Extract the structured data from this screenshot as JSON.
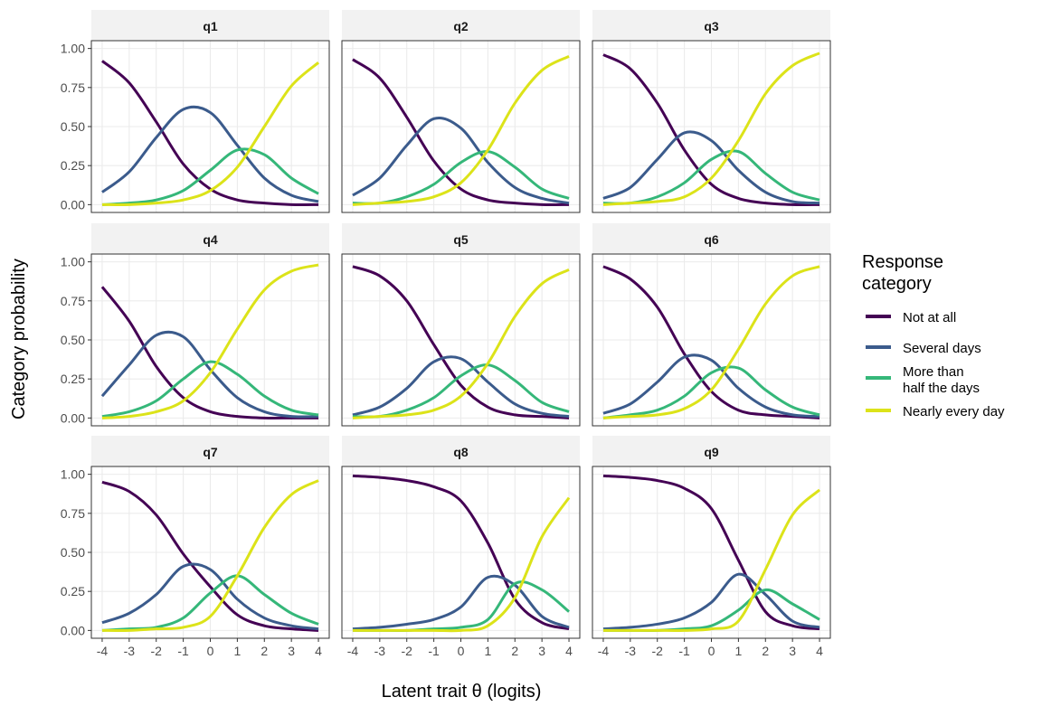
{
  "chart_data": {
    "type": "line",
    "x_label": "Latent trait θ (logits)",
    "y_label": "Category probability",
    "legend_title": "Response\ncategory",
    "legend": [
      {
        "name": "Not at all",
        "color": "#440154"
      },
      {
        "name": "Several days",
        "color": "#3b5b8c"
      },
      {
        "name": "More than\nhalf the days",
        "color": "#35b779"
      },
      {
        "name": "Nearly every day",
        "color": "#dce319"
      }
    ],
    "x": [
      -4,
      -3,
      -2,
      -1,
      0,
      1,
      2,
      3,
      4
    ],
    "xlim": [
      -4.4,
      4.4
    ],
    "xticks": [
      -4,
      -3,
      -2,
      -1,
      0,
      1,
      2,
      3,
      4
    ],
    "ylim": [
      -0.05,
      1.05
    ],
    "yticks": [
      {
        "value": 0,
        "label": "0.00"
      },
      {
        "value": 0.25,
        "label": "0.25"
      },
      {
        "value": 0.5,
        "label": "0.50"
      },
      {
        "value": 0.75,
        "label": "0.75"
      },
      {
        "value": 1,
        "label": "1.00"
      }
    ],
    "grid": true,
    "panels": [
      {
        "title": "q1",
        "series": [
          [
            0.92,
            0.78,
            0.53,
            0.26,
            0.1,
            0.03,
            0.01,
            0.0,
            0.0
          ],
          [
            0.08,
            0.21,
            0.43,
            0.61,
            0.59,
            0.38,
            0.17,
            0.06,
            0.02
          ],
          [
            0.0,
            0.01,
            0.03,
            0.09,
            0.22,
            0.35,
            0.32,
            0.17,
            0.07
          ],
          [
            0.0,
            0.0,
            0.01,
            0.03,
            0.09,
            0.24,
            0.5,
            0.76,
            0.91
          ]
        ]
      },
      {
        "title": "q2",
        "series": [
          [
            0.93,
            0.81,
            0.56,
            0.28,
            0.1,
            0.03,
            0.01,
            0.0,
            0.0
          ],
          [
            0.06,
            0.17,
            0.38,
            0.55,
            0.49,
            0.27,
            0.11,
            0.04,
            0.01
          ],
          [
            0.01,
            0.01,
            0.05,
            0.13,
            0.27,
            0.34,
            0.24,
            0.1,
            0.04
          ],
          [
            0.0,
            0.01,
            0.02,
            0.05,
            0.14,
            0.35,
            0.65,
            0.86,
            0.95
          ]
        ]
      },
      {
        "title": "q3",
        "series": [
          [
            0.96,
            0.87,
            0.65,
            0.35,
            0.13,
            0.04,
            0.01,
            0.0,
            0.0
          ],
          [
            0.04,
            0.11,
            0.29,
            0.46,
            0.41,
            0.22,
            0.08,
            0.02,
            0.01
          ],
          [
            0.01,
            0.01,
            0.05,
            0.14,
            0.29,
            0.34,
            0.2,
            0.08,
            0.03
          ],
          [
            0.0,
            0.01,
            0.02,
            0.05,
            0.17,
            0.41,
            0.71,
            0.89,
            0.97
          ]
        ]
      },
      {
        "title": "q4",
        "series": [
          [
            0.84,
            0.62,
            0.33,
            0.13,
            0.04,
            0.01,
            0.0,
            0.0,
            0.0
          ],
          [
            0.14,
            0.34,
            0.53,
            0.52,
            0.31,
            0.13,
            0.04,
            0.01,
            0.01
          ],
          [
            0.01,
            0.04,
            0.11,
            0.25,
            0.36,
            0.28,
            0.14,
            0.05,
            0.02
          ],
          [
            0.0,
            0.01,
            0.04,
            0.11,
            0.29,
            0.57,
            0.82,
            0.94,
            0.98
          ]
        ]
      },
      {
        "title": "q5",
        "series": [
          [
            0.97,
            0.91,
            0.75,
            0.47,
            0.21,
            0.07,
            0.02,
            0.01,
            0.0
          ],
          [
            0.02,
            0.07,
            0.19,
            0.36,
            0.38,
            0.23,
            0.09,
            0.03,
            0.01
          ],
          [
            0.01,
            0.01,
            0.05,
            0.13,
            0.27,
            0.34,
            0.24,
            0.1,
            0.04
          ],
          [
            0.0,
            0.01,
            0.02,
            0.05,
            0.14,
            0.35,
            0.65,
            0.86,
            0.95
          ]
        ]
      },
      {
        "title": "q6",
        "series": [
          [
            0.97,
            0.89,
            0.71,
            0.41,
            0.17,
            0.05,
            0.02,
            0.01,
            0.0
          ],
          [
            0.03,
            0.09,
            0.23,
            0.39,
            0.37,
            0.19,
            0.07,
            0.02,
            0.01
          ],
          [
            0.0,
            0.02,
            0.05,
            0.14,
            0.29,
            0.32,
            0.18,
            0.07,
            0.02
          ],
          [
            0.0,
            0.01,
            0.02,
            0.06,
            0.18,
            0.44,
            0.73,
            0.91,
            0.97
          ]
        ]
      },
      {
        "title": "q7",
        "series": [
          [
            0.95,
            0.89,
            0.74,
            0.49,
            0.28,
            0.1,
            0.03,
            0.01,
            0.0
          ],
          [
            0.05,
            0.11,
            0.23,
            0.41,
            0.39,
            0.2,
            0.08,
            0.03,
            0.01
          ],
          [
            0.0,
            0.01,
            0.02,
            0.08,
            0.24,
            0.35,
            0.23,
            0.11,
            0.04
          ],
          [
            0.0,
            0.0,
            0.01,
            0.02,
            0.09,
            0.35,
            0.66,
            0.87,
            0.96
          ]
        ]
      },
      {
        "title": "q8",
        "series": [
          [
            0.99,
            0.98,
            0.96,
            0.92,
            0.83,
            0.56,
            0.2,
            0.05,
            0.01
          ],
          [
            0.01,
            0.02,
            0.04,
            0.07,
            0.15,
            0.34,
            0.29,
            0.09,
            0.02
          ],
          [
            0.0,
            0.0,
            0.0,
            0.01,
            0.02,
            0.07,
            0.3,
            0.26,
            0.12
          ],
          [
            0.0,
            0.0,
            0.0,
            0.0,
            0.0,
            0.03,
            0.21,
            0.6,
            0.85
          ]
        ]
      },
      {
        "title": "q9",
        "series": [
          [
            0.99,
            0.98,
            0.96,
            0.91,
            0.78,
            0.45,
            0.12,
            0.03,
            0.01
          ],
          [
            0.01,
            0.02,
            0.04,
            0.08,
            0.18,
            0.36,
            0.23,
            0.06,
            0.02
          ],
          [
            0.0,
            0.0,
            0.0,
            0.01,
            0.03,
            0.13,
            0.26,
            0.17,
            0.07
          ],
          [
            0.0,
            0.0,
            0.0,
            0.0,
            0.01,
            0.06,
            0.39,
            0.74,
            0.9
          ]
        ]
      }
    ]
  }
}
